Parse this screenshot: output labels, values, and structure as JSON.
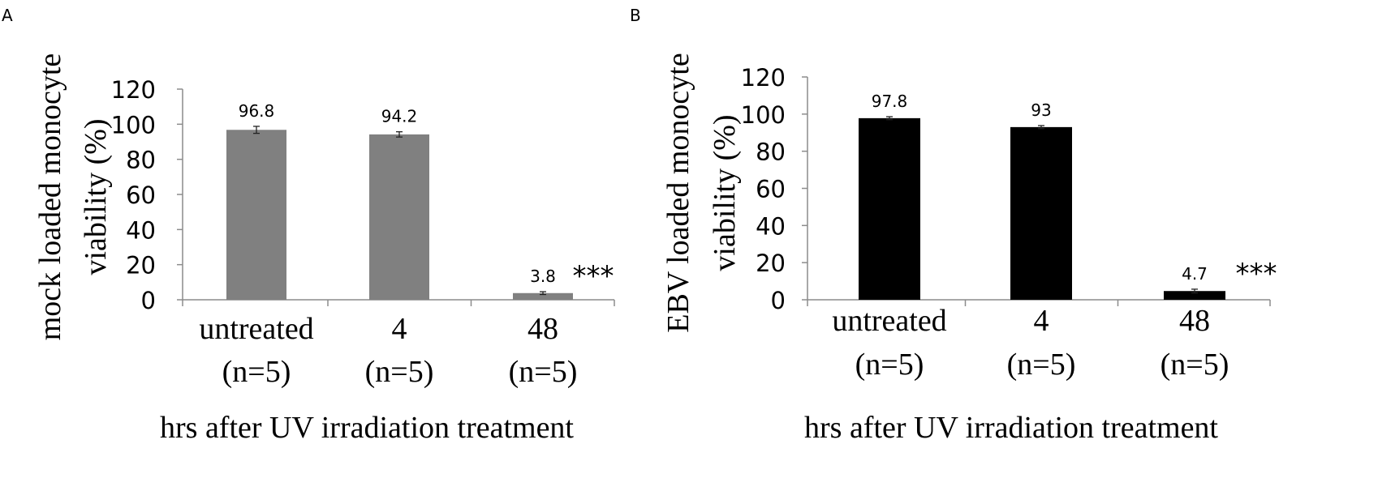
{
  "charts": [
    {
      "panel_label": "A",
      "chart_data": {
        "type": "bar",
        "categories": [
          "untreated\n(n=5)",
          "4\n(n=5)",
          "48\n(n=5)"
        ],
        "category_lines": [
          [
            "untreated",
            "(n=5)"
          ],
          [
            "4",
            "(n=5)"
          ],
          [
            "48",
            "(n=5)"
          ]
        ],
        "values": [
          96.8,
          94.2,
          3.8
        ],
        "errors": [
          2.0,
          1.5,
          0.8
        ],
        "data_labels": [
          "96.8",
          "94.2",
          "3.8"
        ],
        "significance": [
          "",
          "",
          "***"
        ],
        "xlabel": "hrs after UV irradiation treatment",
        "ylabel_lines": [
          "mock loaded monocyte",
          "viability (%)"
        ],
        "yticks": [
          "0",
          "20",
          "40",
          "60",
          "80",
          "100",
          "120"
        ],
        "ylim": [
          0,
          120
        ],
        "grid": false,
        "bar_color": "#808080"
      }
    },
    {
      "panel_label": "B",
      "chart_data": {
        "type": "bar",
        "categories": [
          "untreated\n(n=5)",
          "4\n(n=5)",
          "48\n(n=5)"
        ],
        "category_lines": [
          [
            "untreated",
            "(n=5)"
          ],
          [
            "4",
            "(n=5)"
          ],
          [
            "48",
            "(n=5)"
          ]
        ],
        "values": [
          97.8,
          93,
          4.7
        ],
        "errors": [
          0.8,
          0.8,
          1.0
        ],
        "data_labels": [
          "97.8",
          "93",
          "4.7"
        ],
        "significance": [
          "",
          "",
          "***"
        ],
        "xlabel": "hrs after UV irradiation treatment",
        "ylabel_lines": [
          "EBV loaded monocyte",
          "viability (%)"
        ],
        "yticks": [
          "0",
          "20",
          "40",
          "60",
          "80",
          "100",
          "120"
        ],
        "ylim": [
          0,
          120
        ],
        "grid": false,
        "bar_color": "#000000"
      }
    }
  ]
}
